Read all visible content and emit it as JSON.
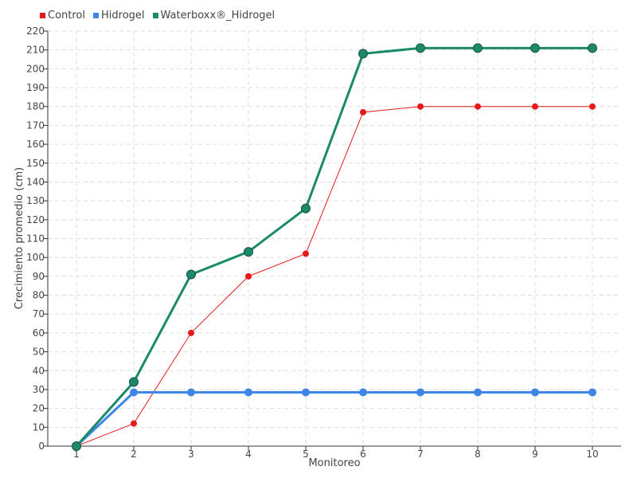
{
  "chart_data": {
    "type": "line",
    "title": "",
    "xlabel": "Monitoreo",
    "ylabel": "Crecimiento promedio (cm)",
    "x": [
      1,
      2,
      3,
      4,
      5,
      6,
      7,
      8,
      9,
      10
    ],
    "xlim": [
      0.5,
      10.5
    ],
    "ylim": [
      0,
      220
    ],
    "yticks": [
      0,
      10,
      20,
      30,
      40,
      50,
      60,
      70,
      80,
      90,
      100,
      110,
      120,
      130,
      140,
      150,
      160,
      170,
      180,
      190,
      200,
      210,
      220
    ],
    "grid": true,
    "legend_position": "top-left",
    "series": [
      {
        "name": "Control",
        "color": "#e41a1c",
        "values": [
          0,
          12,
          60,
          90,
          102,
          177,
          180,
          180,
          180,
          180
        ]
      },
      {
        "name": "Hidrogel",
        "color": "#3d86e6",
        "values": [
          0,
          28.5,
          28.5,
          28.5,
          28.5,
          28.5,
          28.5,
          28.5,
          28.5,
          28.5
        ]
      },
      {
        "name": "Waterboxx®_Hidrogel",
        "color": "#1b8a6b",
        "values": [
          0,
          34,
          91,
          103,
          126,
          208,
          211,
          211,
          211,
          211
        ]
      }
    ]
  }
}
